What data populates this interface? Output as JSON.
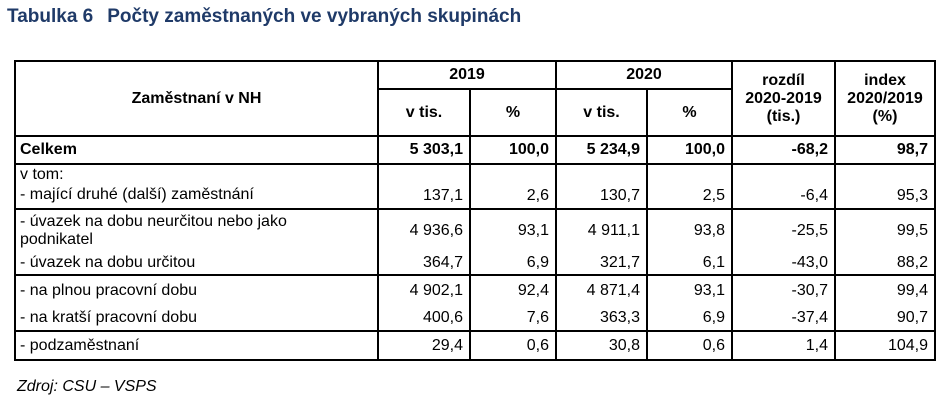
{
  "title": {
    "number": "Tabulka 6",
    "text": "Počty zaměstnaných ve vybraných skupinách"
  },
  "header": {
    "row_label": "Zaměstnaní v NH",
    "year1": "2019",
    "year2": "2020",
    "diff": [
      "rozdíl",
      "2020-2019",
      "(tis.)"
    ],
    "index": [
      "index",
      "2020/2019",
      "(%)"
    ],
    "sub_thousands": "v tis.",
    "sub_percent": "%"
  },
  "rows": [
    {
      "label": "Celkem",
      "v2019": "5 303,1",
      "p2019": "100,0",
      "v2020": "5 234,9",
      "p2020": "100,0",
      "diff": "-68,2",
      "index": "98,7"
    },
    {
      "label": "v tom:"
    },
    {
      "label": " - mající druhé (další) zaměstnání",
      "v2019": "137,1",
      "p2019": "2,6",
      "v2020": "130,7",
      "p2020": "2,5",
      "diff": "-6,4",
      "index": "95,3"
    },
    {
      "label": " - úvazek na dobu neurčitou nebo jako podnikatel",
      "v2019": "4 936,6",
      "p2019": "93,1",
      "v2020": "4 911,1",
      "p2020": "93,8",
      "diff": "-25,5",
      "index": "99,5"
    },
    {
      "label": " - úvazek na dobu určitou",
      "v2019": "364,7",
      "p2019": "6,9",
      "v2020": "321,7",
      "p2020": "6,1",
      "diff": "-43,0",
      "index": "88,2"
    },
    {
      "label": " - na plnou pracovní dobu",
      "v2019": "4 902,1",
      "p2019": "92,4",
      "v2020": "4 871,4",
      "p2020": "93,1",
      "diff": "-30,7",
      "index": "99,4"
    },
    {
      "label": " - na kratší pracovní dobu",
      "v2019": "400,6",
      "p2019": "7,6",
      "v2020": "363,3",
      "p2020": "6,9",
      "diff": "-37,4",
      "index": "90,7"
    },
    {
      "label": " - podzaměstnaní",
      "v2019": "29,4",
      "p2019": "0,6",
      "v2020": "30,8",
      "p2020": "0,6",
      "diff": "1,4",
      "index": "104,9"
    }
  ],
  "source": "Zdroj: CSU – VSPS"
}
